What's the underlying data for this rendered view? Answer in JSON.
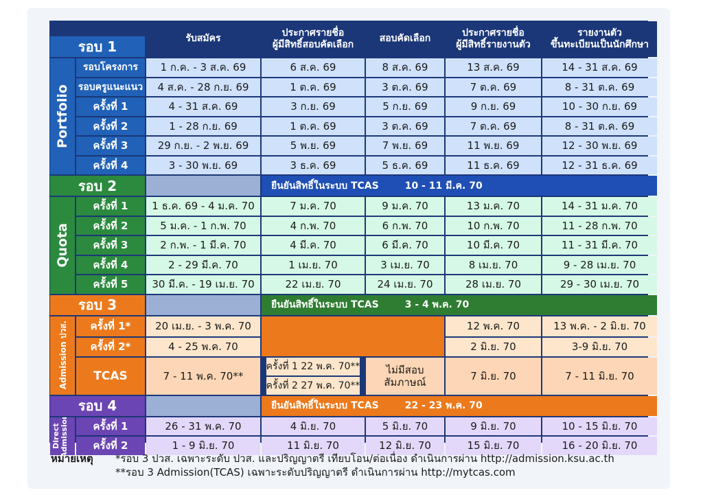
{
  "header": {
    "col1": "รับสมัคร",
    "col2_line1": "ประกาศรายชื่อ",
    "col2_line2": "ผู้มีสิทธิ์สอบคัดเลือก",
    "col3": "สอบคัดเลือก",
    "col4_line1": "ประกาศรายชื่อ",
    "col4_line2": "ผู้มีสิทธิ์รายงานตัว",
    "col5_line1": "รายงานตัว",
    "col5_line2": "ขึ้นทะเบียนเป็นนักศึกษา"
  },
  "round1": {
    "label": "รอบ 1",
    "side": "Portfolio",
    "rows": [
      {
        "name": "รอบโครงการ",
        "c1": "1 ก.ค. - 3 ส.ค. 69",
        "c2": "6 ส.ค. 69",
        "c3": "8 ส.ค. 69",
        "c4": "13 ส.ค. 69",
        "c5": "14 - 31 ส.ค. 69"
      },
      {
        "name": "รอบครูแนะแนว",
        "c1": "4 ส.ค. - 28 ก.ย. 69",
        "c2": "1 ต.ค. 69",
        "c3": "3 ต.ค. 69",
        "c4": "7 ต.ค. 69",
        "c5": "8 - 31 ต.ค. 69"
      },
      {
        "name": "ครั้งที่ 1",
        "c1": "4 - 31 ส.ค. 69",
        "c2": "3 ก.ย. 69",
        "c3": "5 ก.ย. 69",
        "c4": "9 ก.ย. 69",
        "c5": "10 - 30 ก.ย. 69"
      },
      {
        "name": "ครั้งที่ 2",
        "c1": "1 - 28 ก.ย. 69",
        "c2": "1 ต.ค. 69",
        "c3": "3 ต.ค. 69",
        "c4": "7 ต.ค. 69",
        "c5": "8 - 31 ต.ค. 69"
      },
      {
        "name": "ครั้งที่ 3",
        "c1": "29 ก.ย. - 2 พ.ย. 69",
        "c2": "5 พ.ย. 69",
        "c3": "7 พ.ย. 69",
        "c4": "11 พ.ย. 69",
        "c5": "12 - 30 พ.ย. 69"
      },
      {
        "name": "ครั้งที่ 4",
        "c1": "3 - 30 พ.ย. 69",
        "c2": "3 ธ.ค. 69",
        "c3": "5 ธ.ค. 69",
        "c4": "11 ธ.ค. 69",
        "c5": "12 - 31 ธ.ค. 69"
      }
    ]
  },
  "round2": {
    "label": "รอบ 2",
    "side": "Quota",
    "confirm_text": "ยืนยันสิทธิ์ในระบบ TCAS",
    "confirm_date": "10 - 11 มี.ค. 70",
    "rows": [
      {
        "name": "ครั้งที่ 1",
        "c1": "1 ธ.ค. 69 - 4 ม.ค. 70",
        "c2": "7 ม.ค. 70",
        "c3": "9 ม.ค. 70",
        "c4": "13 ม.ค. 70",
        "c5": "14 - 31 ม.ค. 70"
      },
      {
        "name": "ครั้งที่ 2",
        "c1": "5 ม.ค. - 1 ก.พ. 70",
        "c2": "4 ก.พ. 70",
        "c3": "6 ก.พ. 70",
        "c4": "10 ก.พ. 70",
        "c5": "11 - 28 ก.พ. 70"
      },
      {
        "name": "ครั้งที่ 3",
        "c1": "2 ก.พ. - 1 มี.ค. 70",
        "c2": "4 มี.ค. 70",
        "c3": "6 มี.ค. 70",
        "c4": "10 มี.ค. 70",
        "c5": "11 - 31 มี.ค. 70"
      },
      {
        "name": "ครั้งที่ 4",
        "c1": "2 - 29 มี.ค. 70",
        "c2": "1 เม.ย. 70",
        "c3": "3 เม.ย. 70",
        "c4": "8 เม.ย. 70",
        "c5": "9 - 28 เม.ย. 70"
      },
      {
        "name": "ครั้งที่ 5",
        "c1": "30 มี.ค. - 19 เม.ย. 70",
        "c2": "22 เม.ย. 70",
        "c3": "24 เม.ย. 70",
        "c4": "28 เม.ย. 70",
        "c5": "29 - 30 เม.ย. 70"
      }
    ]
  },
  "round3": {
    "label": "รอบ 3",
    "side": "Admission ปวส.",
    "confirm_text": "ยืนยันสิทธิ์ในระบบ TCAS",
    "confirm_date": "3 - 4 พ.ค. 70",
    "row1": {
      "name": "ครั้งที่ 1*",
      "c1": "20 เม.ย. - 3 พ.ค. 70",
      "c4": "12 พ.ค. 70",
      "c5": "13 พ.ค. - 2 มิ.ย. 70"
    },
    "row2": {
      "name": "ครั้งที่ 2*",
      "c1": "4 - 25 พ.ค. 70",
      "c4": "2 มิ.ย. 70",
      "c5": "3-9 มิ.ย. 70"
    },
    "row3": {
      "name": "TCAS",
      "c1": "7 - 11 พ.ค. 70**",
      "sub1": "ครั้งที่ 1  22 พ.ค. 70**",
      "sub2": "ครั้งที่ 2  27 พ.ค. 70**",
      "c3_line1": "ไม่มีสอบ",
      "c3_line2": "สัมภาษณ์",
      "c4": "7 มิ.ย. 70",
      "c5": "7 - 11 มิ.ย. 70"
    }
  },
  "round4": {
    "label": "รอบ 4",
    "side": "Direct Admission",
    "confirm_text": "ยืนยันสิทธิ์ในระบบ TCAS",
    "confirm_date": "22 - 23 พ.ค. 70",
    "rows": [
      {
        "name": "ครั้งที่ 1",
        "c1": "26 - 31 พ.ค. 70",
        "c2": "4 มิ.ย. 70",
        "c3": "5 มิ.ย. 70",
        "c4": "9 มิ.ย. 70",
        "c5": "10 - 15 มิ.ย. 70"
      },
      {
        "name": "ครั้งที่ 2",
        "c1": "1 - 9 มิ.ย. 70",
        "c2": "11 มิ.ย. 70",
        "c3": "12 มิ.ย. 70",
        "c4": "15 มิ.ย. 70",
        "c5": "16 - 20 มิ.ย. 70"
      }
    ]
  },
  "notes": {
    "title": "หมายเหตุ",
    "line1": "*รอบ 3 ปวส. เฉพาะระดับ ปวส. และปริญญาตรี เทียบโอน/ต่อเนื่อง ดำเนินการผ่าน http://admission.ksu.ac.th",
    "line2": "**รอบ 3 Admission(TCAS) เฉพาะระดับปริญญาตรี ดำเนินการผ่าน http://mytcas.com"
  },
  "colors": {
    "header": "#1b3778",
    "round1": "#2162b8",
    "round2": "#2b8a3e",
    "round3": "#ec7a1c",
    "round4": "#6b45b3"
  }
}
